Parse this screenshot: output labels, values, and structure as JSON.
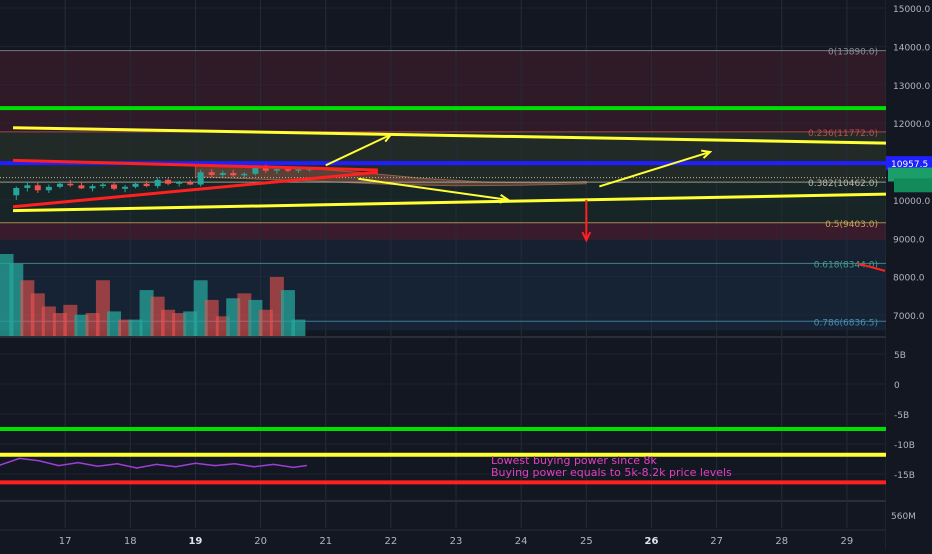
{
  "chart_data": {
    "type": "candlestick",
    "panes": {
      "price": {
        "y_ticks": [
          "15000.0",
          "14000.0",
          "13000.0",
          "12000.0",
          "11000.0",
          "10000.0",
          "9000.0",
          "8000.0",
          "7000.0"
        ],
        "last_price_label": "10957.5",
        "fib_levels": [
          {
            "label": "0(13890.0)",
            "value": 13890.0,
            "color": "#8a8f99"
          },
          {
            "label": "0.236(11772.0)",
            "value": 11772.0,
            "color": "#c0504d"
          },
          {
            "label": "0.382(10462.0)",
            "value": 10462.0,
            "color": "#b7b7a4"
          },
          {
            "label": "0.5(9403.0)",
            "value": 9403.0,
            "color": "#c9a15a"
          },
          {
            "label": "0.618(8344.0)",
            "value": 8344.0,
            "color": "#4a9e8f"
          },
          {
            "label": "0.786(6836.5)",
            "value": 6836.5,
            "color": "#4a8fb0"
          }
        ],
        "horizontal_lines": [
          {
            "value": 12390,
            "color": "#00e000"
          },
          {
            "value": 10957.5,
            "color": "#1f1fff"
          }
        ],
        "trend_lines": [
          {
            "from": [
              16.2,
              11880
            ],
            "to": [
              29.6,
              11480
            ],
            "color": "#ffff33"
          },
          {
            "from": [
              16.2,
              9720
            ],
            "to": [
              29.6,
              10150
            ],
            "color": "#ffff33"
          },
          {
            "from": [
              16.2,
              11030
            ],
            "to": [
              21.8,
              10780
            ],
            "color": "#ff2020"
          },
          {
            "from": [
              16.2,
              9820
            ],
            "to": [
              21.8,
              10720
            ],
            "color": "#ff2020"
          }
        ],
        "arrows": [
          {
            "from": [
              21.0,
              10900
            ],
            "to": [
              22.0,
              11700
            ],
            "color": "#ffff33"
          },
          {
            "from": [
              21.5,
              10550
            ],
            "to": [
              23.8,
              10000
            ],
            "color": "#ffff33"
          },
          {
            "from": [
              25.2,
              10350
            ],
            "to": [
              26.9,
              11250
            ],
            "color": "#ffff33"
          },
          {
            "from": [
              25.0,
              10000
            ],
            "to": [
              25.0,
              8950
            ],
            "color": "#ff2020"
          }
        ],
        "candles": [
          {
            "d": 16.25,
            "o": 10120,
            "h": 10350,
            "l": 10000,
            "c": 10310
          },
          {
            "d": 16.42,
            "o": 10310,
            "h": 10480,
            "l": 10220,
            "c": 10380
          },
          {
            "d": 16.58,
            "o": 10380,
            "h": 10450,
            "l": 10180,
            "c": 10250
          },
          {
            "d": 16.75,
            "o": 10250,
            "h": 10400,
            "l": 10180,
            "c": 10340
          },
          {
            "d": 16.92,
            "o": 10340,
            "h": 10480,
            "l": 10300,
            "c": 10420
          },
          {
            "d": 17.08,
            "o": 10420,
            "h": 10520,
            "l": 10340,
            "c": 10380
          },
          {
            "d": 17.25,
            "o": 10380,
            "h": 10460,
            "l": 10280,
            "c": 10300
          },
          {
            "d": 17.42,
            "o": 10300,
            "h": 10410,
            "l": 10220,
            "c": 10360
          },
          {
            "d": 17.58,
            "o": 10360,
            "h": 10440,
            "l": 10300,
            "c": 10400
          },
          {
            "d": 17.75,
            "o": 10400,
            "h": 10450,
            "l": 10250,
            "c": 10290
          },
          {
            "d": 17.92,
            "o": 10290,
            "h": 10390,
            "l": 10200,
            "c": 10340
          },
          {
            "d": 18.08,
            "o": 10340,
            "h": 10480,
            "l": 10300,
            "c": 10420
          },
          {
            "d": 18.25,
            "o": 10420,
            "h": 10500,
            "l": 10330,
            "c": 10360
          },
          {
            "d": 18.42,
            "o": 10360,
            "h": 10580,
            "l": 10300,
            "c": 10520
          },
          {
            "d": 18.58,
            "o": 10520,
            "h": 10560,
            "l": 10380,
            "c": 10420
          },
          {
            "d": 18.75,
            "o": 10420,
            "h": 10500,
            "l": 10350,
            "c": 10460
          },
          {
            "d": 18.92,
            "o": 10460,
            "h": 10520,
            "l": 10380,
            "c": 10400
          },
          {
            "d": 19.08,
            "o": 10400,
            "h": 10780,
            "l": 10350,
            "c": 10720
          },
          {
            "d": 19.25,
            "o": 10720,
            "h": 10800,
            "l": 10600,
            "c": 10650
          },
          {
            "d": 19.42,
            "o": 10650,
            "h": 10760,
            "l": 10580,
            "c": 10700
          },
          {
            "d": 19.58,
            "o": 10700,
            "h": 10780,
            "l": 10600,
            "c": 10640
          },
          {
            "d": 19.75,
            "o": 10640,
            "h": 10720,
            "l": 10560,
            "c": 10680
          },
          {
            "d": 19.92,
            "o": 10680,
            "h": 10900,
            "l": 10640,
            "c": 10860
          },
          {
            "d": 20.08,
            "o": 10860,
            "h": 10920,
            "l": 10700,
            "c": 10760
          },
          {
            "d": 20.25,
            "o": 10760,
            "h": 10840,
            "l": 10680,
            "c": 10800
          },
          {
            "d": 20.42,
            "o": 10800,
            "h": 10860,
            "l": 10720,
            "c": 10760
          },
          {
            "d": 20.58,
            "o": 10760,
            "h": 10820,
            "l": 10700,
            "c": 10790
          },
          {
            "d": 20.75,
            "o": 10790,
            "h": 10840,
            "l": 10740,
            "c": 10800
          }
        ],
        "volume": [
          {
            "d": 16.1,
            "v": 1.0,
            "up": true
          },
          {
            "d": 16.25,
            "v": 0.88,
            "up": true
          },
          {
            "d": 16.42,
            "v": 0.68,
            "up": false
          },
          {
            "d": 16.58,
            "v": 0.52,
            "up": false
          },
          {
            "d": 16.75,
            "v": 0.36,
            "up": false
          },
          {
            "d": 16.92,
            "v": 0.28,
            "up": false
          },
          {
            "d": 17.08,
            "v": 0.38,
            "up": false
          },
          {
            "d": 17.25,
            "v": 0.26,
            "up": true
          },
          {
            "d": 17.42,
            "v": 0.28,
            "up": false
          },
          {
            "d": 17.58,
            "v": 0.68,
            "up": false
          },
          {
            "d": 17.75,
            "v": 0.3,
            "up": true
          },
          {
            "d": 17.92,
            "v": 0.2,
            "up": false
          },
          {
            "d": 18.08,
            "v": 0.2,
            "up": true
          },
          {
            "d": 18.25,
            "v": 0.56,
            "up": true
          },
          {
            "d": 18.42,
            "v": 0.48,
            "up": false
          },
          {
            "d": 18.58,
            "v": 0.32,
            "up": false
          },
          {
            "d": 18.75,
            "v": 0.28,
            "up": false
          },
          {
            "d": 18.92,
            "v": 0.3,
            "up": true
          },
          {
            "d": 19.08,
            "v": 0.68,
            "up": true
          },
          {
            "d": 19.25,
            "v": 0.44,
            "up": false
          },
          {
            "d": 19.42,
            "v": 0.24,
            "up": false
          },
          {
            "d": 19.58,
            "v": 0.46,
            "up": true
          },
          {
            "d": 19.75,
            "v": 0.52,
            "up": false
          },
          {
            "d": 19.92,
            "v": 0.44,
            "up": true
          },
          {
            "d": 20.08,
            "v": 0.32,
            "up": false
          },
          {
            "d": 20.25,
            "v": 0.72,
            "up": false
          },
          {
            "d": 20.42,
            "v": 0.56,
            "up": true
          },
          {
            "d": 20.58,
            "v": 0.2,
            "up": true
          }
        ]
      },
      "indicator": {
        "y_ticks": [
          "5B",
          "0",
          "-5B",
          "-10B",
          "-15B"
        ],
        "horizontal_lines": [
          {
            "value": -7.5,
            "color": "#00e000"
          },
          {
            "value": -11.8,
            "color": "#ffff33"
          },
          {
            "value": -16.4,
            "color": "#ff2020"
          }
        ],
        "series": {
          "color": "#9c3fd4",
          "x": [
            16.0,
            16.3,
            16.6,
            16.9,
            17.2,
            17.5,
            17.8,
            18.1,
            18.4,
            18.7,
            19.0,
            19.3,
            19.6,
            19.9,
            20.2,
            20.5,
            20.7
          ],
          "y": [
            -13.5,
            -12.4,
            -12.8,
            -13.6,
            -13.1,
            -13.7,
            -13.3,
            -14.0,
            -13.4,
            -13.8,
            -13.2,
            -13.6,
            -13.3,
            -13.8,
            -13.4,
            -13.9,
            -13.6
          ]
        },
        "annotation_lines": [
          "Lowest buying power since 8k",
          "Buying power equals to 5k-8.2k price levels"
        ],
        "annotation_color": "#e040c0"
      },
      "bottom": {
        "y_ticks": [
          "560M"
        ]
      }
    },
    "x_ticks": [
      "17",
      "18",
      "19",
      "20",
      "21",
      "22",
      "23",
      "24",
      "25",
      "26",
      "27",
      "28",
      "29"
    ],
    "x_tick_values": [
      17,
      18,
      19,
      20,
      21,
      22,
      23,
      24,
      25,
      26,
      27,
      28,
      29
    ],
    "x_range": [
      16.0,
      29.6
    ],
    "highlighted_x_ticks": [
      "19",
      "26"
    ],
    "colors": {
      "up": "#26a69a",
      "down": "#ef5350",
      "background": "#131722",
      "grid": "#262b38"
    }
  }
}
